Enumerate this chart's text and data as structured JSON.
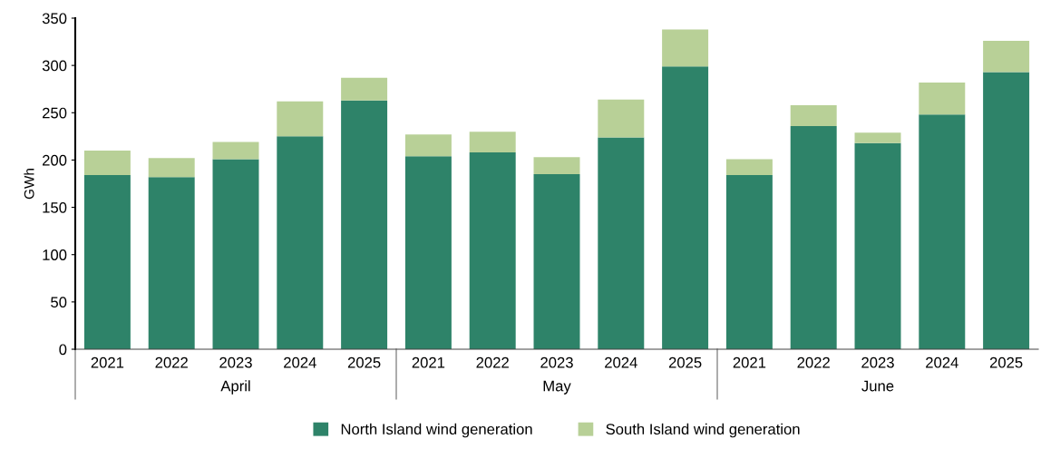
{
  "chart_data": {
    "type": "bar",
    "stacked": true,
    "ylabel": "GWh",
    "ylim": [
      0,
      350
    ],
    "yticks": [
      0,
      50,
      100,
      150,
      200,
      250,
      300,
      350
    ],
    "grid": false,
    "legend": "bottom",
    "categories": [
      "2021",
      "2022",
      "2023",
      "2024",
      "2025",
      "2021",
      "2022",
      "2023",
      "2024",
      "2025",
      "2021",
      "2022",
      "2023",
      "2024",
      "2025"
    ],
    "annotations": [
      "April",
      "May",
      "June"
    ],
    "series": [
      {
        "name": "North Island wind generation",
        "color": "#2e8369",
        "values": [
          184,
          182,
          201,
          225,
          263,
          204,
          208,
          185,
          224,
          299,
          184,
          236,
          218,
          248,
          293
        ]
      },
      {
        "name": "South Island wind generation",
        "color": "#b8d097",
        "values": [
          26,
          20,
          18,
          37,
          24,
          23,
          22,
          18,
          40,
          39,
          17,
          22,
          11,
          34,
          33
        ]
      }
    ]
  }
}
